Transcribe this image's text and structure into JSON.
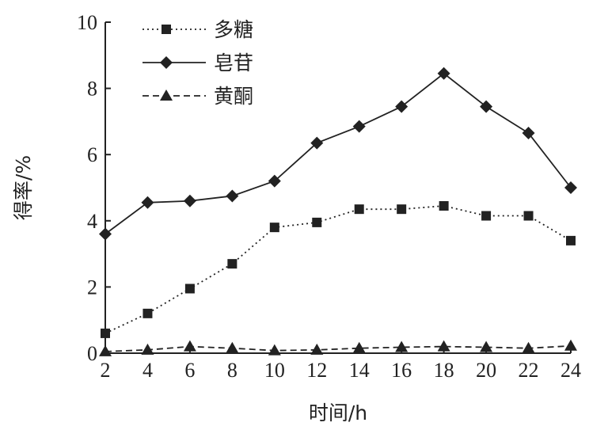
{
  "chart_data": {
    "type": "line",
    "xlabel": "时间/h",
    "ylabel": "得率/%",
    "x": [
      2,
      4,
      6,
      8,
      10,
      12,
      14,
      16,
      18,
      20,
      22,
      24
    ],
    "xlim": [
      2,
      24
    ],
    "ylim": [
      0,
      10
    ],
    "xticks": [
      2,
      4,
      6,
      8,
      10,
      12,
      14,
      16,
      18,
      20,
      22,
      24
    ],
    "yticks": [
      0,
      2,
      4,
      6,
      8,
      10
    ],
    "grid": false,
    "legend_position": "top-left",
    "series": [
      {
        "name": "多糖",
        "marker": "square",
        "line_style": "dotted",
        "color": "#222222",
        "values": [
          0.6,
          1.2,
          1.95,
          2.7,
          3.8,
          3.95,
          4.35,
          4.35,
          4.45,
          4.15,
          4.15,
          3.4
        ]
      },
      {
        "name": "皂苷",
        "marker": "diamond",
        "line_style": "solid",
        "color": "#222222",
        "values": [
          3.6,
          4.55,
          4.6,
          4.75,
          5.2,
          6.35,
          6.85,
          7.45,
          8.45,
          7.45,
          6.65,
          5.0
        ]
      },
      {
        "name": "黄酮",
        "marker": "triangle",
        "line_style": "dashed",
        "color": "#222222",
        "values": [
          0.05,
          0.1,
          0.2,
          0.15,
          0.08,
          0.1,
          0.15,
          0.18,
          0.2,
          0.18,
          0.15,
          0.22
        ]
      }
    ]
  }
}
